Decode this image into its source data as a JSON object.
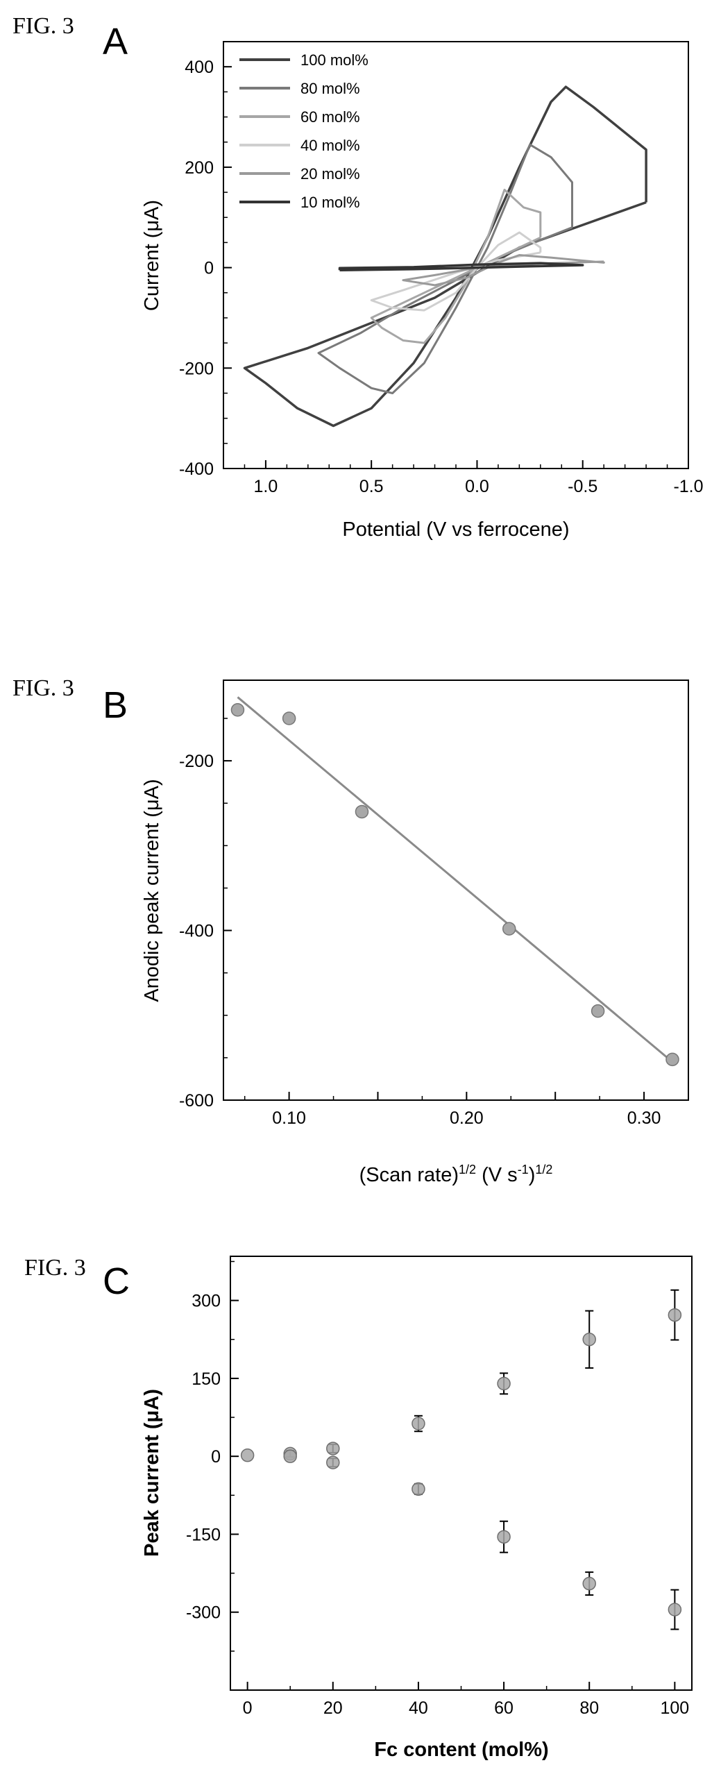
{
  "chart_data": [
    {
      "type": "line",
      "fig_label": "FIG. 3",
      "panel_letter": "A",
      "xlabel": "Potential (V vs ferrocene)",
      "ylabel": "Current (μA)",
      "xlim": [
        1.2,
        -1.0
      ],
      "ylim": [
        -400,
        450
      ],
      "xticks": [
        1.0,
        0.5,
        0.0,
        -0.5,
        -1.0
      ],
      "xtick_labels": [
        "1.0",
        "0.5",
        "0.0",
        "-0.5",
        "-1.0"
      ],
      "yticks": [
        400,
        200,
        0,
        -200,
        -400
      ],
      "ytick_labels": [
        "400",
        "200",
        "0",
        "-200",
        "-400"
      ],
      "legend_position": "top-left",
      "series": [
        {
          "name": "100 mol%",
          "color": "#404040",
          "points": [
            [
              -0.8,
              130
            ],
            [
              -0.5,
              85
            ],
            [
              -0.2,
              40
            ],
            [
              0.0,
              -10
            ],
            [
              0.2,
              -60
            ],
            [
              0.5,
              -110
            ],
            [
              0.8,
              -160
            ],
            [
              1.1,
              -200
            ],
            [
              1.0,
              -230
            ],
            [
              0.85,
              -280
            ],
            [
              0.68,
              -315
            ],
            [
              0.5,
              -280
            ],
            [
              0.3,
              -190
            ],
            [
              0.1,
              -60
            ],
            [
              -0.05,
              60
            ],
            [
              -0.2,
              200
            ],
            [
              -0.35,
              330
            ],
            [
              -0.42,
              360
            ],
            [
              -0.55,
              320
            ],
            [
              -0.8,
              235
            ]
          ]
        },
        {
          "name": "80 mol%",
          "color": "#7a7a7a",
          "points": [
            [
              -0.45,
              80
            ],
            [
              -0.3,
              55
            ],
            [
              -0.1,
              20
            ],
            [
              0.1,
              -25
            ],
            [
              0.35,
              -80
            ],
            [
              0.55,
              -130
            ],
            [
              0.75,
              -170
            ],
            [
              0.65,
              -200
            ],
            [
              0.5,
              -240
            ],
            [
              0.4,
              -250
            ],
            [
              0.25,
              -190
            ],
            [
              0.1,
              -80
            ],
            [
              -0.05,
              40
            ],
            [
              -0.15,
              140
            ],
            [
              -0.25,
              245
            ],
            [
              -0.35,
              220
            ],
            [
              -0.45,
              170
            ]
          ]
        },
        {
          "name": "60 mol%",
          "color": "#a6a6a6",
          "points": [
            [
              -0.3,
              60
            ],
            [
              -0.15,
              30
            ],
            [
              0.05,
              -10
            ],
            [
              0.25,
              -50
            ],
            [
              0.5,
              -100
            ],
            [
              0.45,
              -120
            ],
            [
              0.35,
              -145
            ],
            [
              0.25,
              -150
            ],
            [
              0.15,
              -100
            ],
            [
              0.05,
              -30
            ],
            [
              -0.05,
              60
            ],
            [
              -0.13,
              155
            ],
            [
              -0.22,
              120
            ],
            [
              -0.3,
              110
            ]
          ]
        },
        {
          "name": "40 mol%",
          "color": "#cfcfcf",
          "points": [
            [
              -0.3,
              30
            ],
            [
              -0.1,
              15
            ],
            [
              0.1,
              -10
            ],
            [
              0.35,
              -45
            ],
            [
              0.5,
              -65
            ],
            [
              0.4,
              -80
            ],
            [
              0.25,
              -85
            ],
            [
              0.1,
              -50
            ],
            [
              0.0,
              0
            ],
            [
              -0.1,
              45
            ],
            [
              -0.2,
              70
            ],
            [
              -0.3,
              40
            ]
          ]
        },
        {
          "name": "20 mol%",
          "color": "#9a9a9a",
          "points": [
            [
              -0.6,
              12
            ],
            [
              -0.3,
              8
            ],
            [
              0.0,
              0
            ],
            [
              0.2,
              -15
            ],
            [
              0.35,
              -25
            ],
            [
              0.2,
              -35
            ],
            [
              0.05,
              -20
            ],
            [
              -0.1,
              10
            ],
            [
              -0.2,
              25
            ],
            [
              -0.35,
              20
            ],
            [
              -0.6,
              10
            ]
          ]
        },
        {
          "name": "10 mol%",
          "color": "#333333",
          "points": [
            [
              0.65,
              -5
            ],
            [
              0.3,
              -3
            ],
            [
              0.0,
              0
            ],
            [
              -0.3,
              3
            ],
            [
              -0.5,
              5
            ],
            [
              -0.3,
              9
            ],
            [
              0.0,
              6
            ],
            [
              0.3,
              1
            ],
            [
              0.65,
              -1
            ]
          ]
        }
      ]
    },
    {
      "type": "scatter",
      "fig_label": "FIG. 3",
      "panel_letter": "B",
      "xlabel_main": "(Scan rate)",
      "xlabel_exp1": "1/2",
      "xlabel_mid": " (V s",
      "xlabel_exp2": "-1",
      "xlabel_end": ")",
      "xlabel_exp3": "1/2",
      "ylabel": "Anodic peak current (μA)",
      "xlim": [
        0.063,
        0.325
      ],
      "ylim": [
        -600,
        -105
      ],
      "xticks": [
        0.1,
        0.15,
        0.2,
        0.25,
        0.3
      ],
      "xtick_labels": [
        "0.10",
        "",
        "0.20",
        "",
        "0.30"
      ],
      "yticks": [
        -200,
        -400,
        -600
      ],
      "ytick_labels": [
        "-200",
        "-400",
        "-600"
      ],
      "points": [
        [
          0.071,
          -140
        ],
        [
          0.1,
          -150
        ],
        [
          0.141,
          -260
        ],
        [
          0.224,
          -398
        ],
        [
          0.274,
          -495
        ],
        [
          0.316,
          -552
        ]
      ],
      "fit_line": [
        [
          0.071,
          -125
        ],
        [
          0.316,
          -555
        ]
      ]
    },
    {
      "type": "scatter",
      "fig_label": "FIG. 3",
      "panel_letter": "C",
      "xlabel": "Fc content (mol%)",
      "ylabel": "Peak current (μA)",
      "xlim": [
        -4,
        104
      ],
      "ylim": [
        -450,
        385
      ],
      "xticks": [
        0,
        20,
        40,
        60,
        80,
        100
      ],
      "xtick_labels": [
        "0",
        "20",
        "40",
        "60",
        "80",
        "100"
      ],
      "yticks": [
        300,
        150,
        0,
        -150,
        -300
      ],
      "ytick_labels": [
        "300",
        "150",
        "0",
        "-150",
        "-300"
      ],
      "points": [
        {
          "x": 0,
          "y": 2,
          "err": 0
        },
        {
          "x": 10,
          "y": 5,
          "err": 6
        },
        {
          "x": 10,
          "y": 0,
          "err": 0
        },
        {
          "x": 20,
          "y": 15,
          "err": 8
        },
        {
          "x": 20,
          "y": -12,
          "err": 8
        },
        {
          "x": 40,
          "y": 63,
          "err": 15
        },
        {
          "x": 40,
          "y": -63,
          "err": 10
        },
        {
          "x": 60,
          "y": 140,
          "err": 20
        },
        {
          "x": 60,
          "y": -155,
          "err": 30
        },
        {
          "x": 80,
          "y": 225,
          "err": 55
        },
        {
          "x": 80,
          "y": -245,
          "err": 22
        },
        {
          "x": 100,
          "y": 272,
          "err": 48
        },
        {
          "x": 100,
          "y": -295,
          "err": 38
        }
      ]
    }
  ]
}
